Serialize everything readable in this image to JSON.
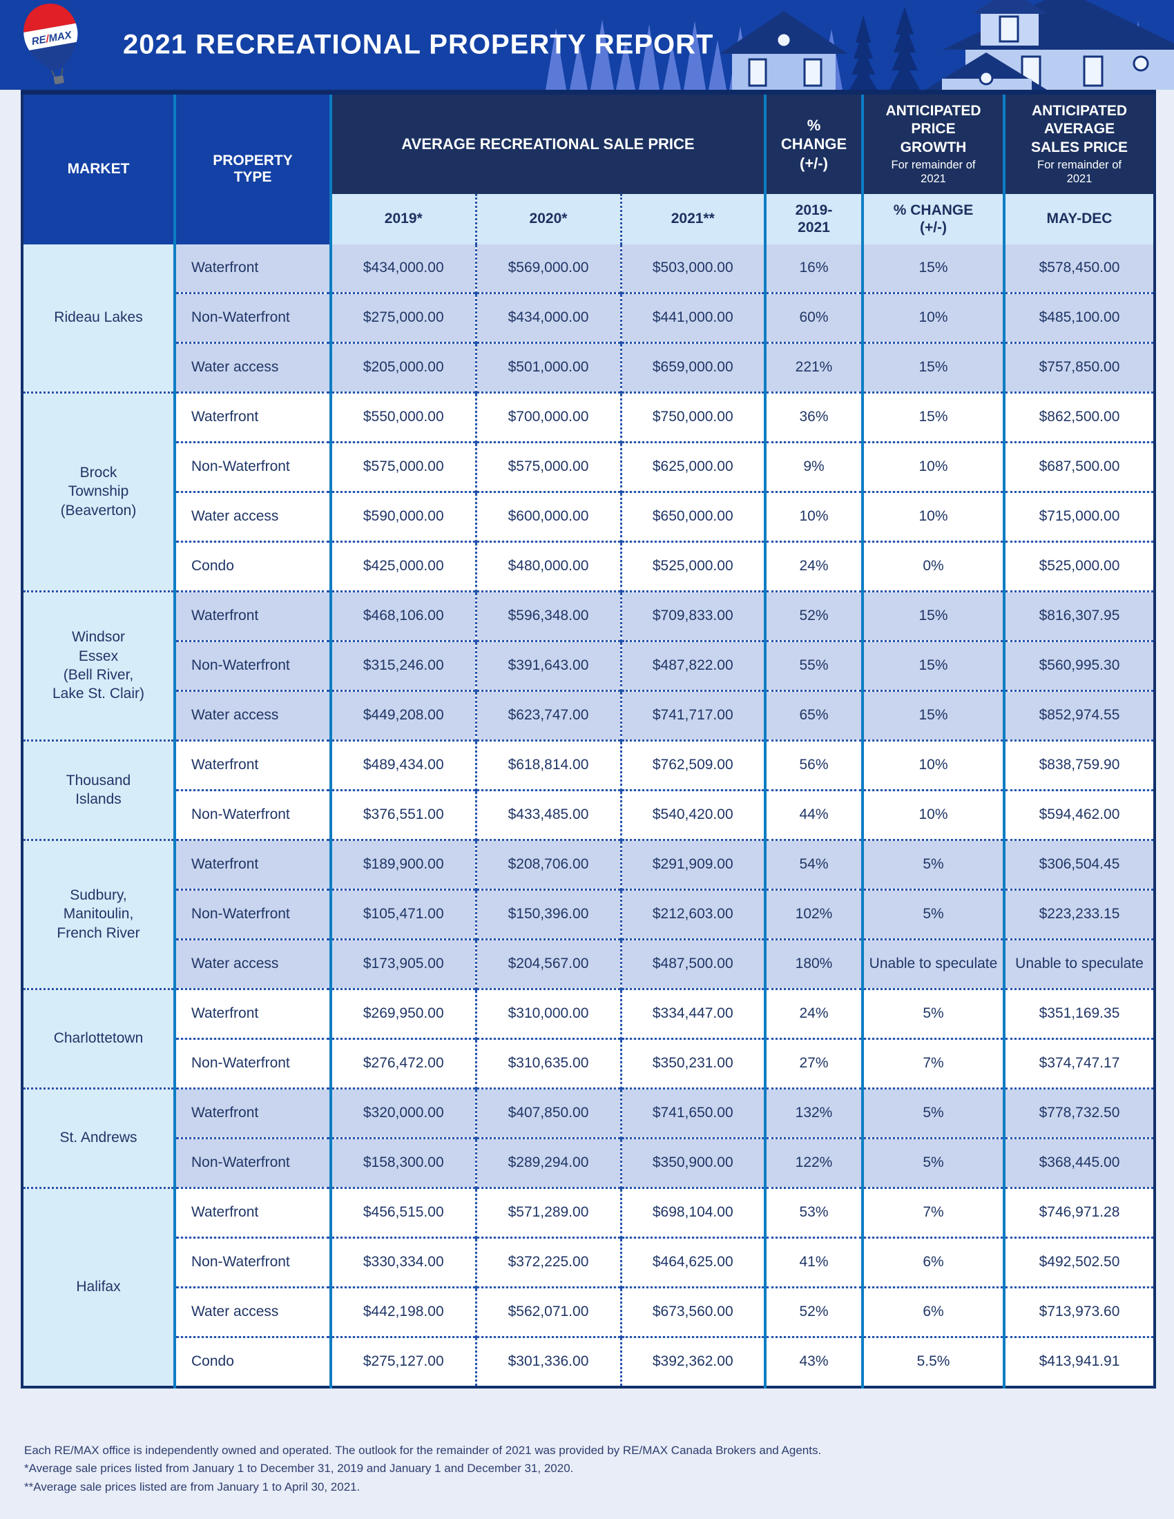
{
  "header": {
    "title": "2021 RECREATIONAL PROPERTY REPORT",
    "logo": {
      "re": "RE",
      "slash": "/",
      "max": "MAX"
    }
  },
  "table": {
    "headers": {
      "market": "MARKET",
      "property_type": "PROPERTY\nTYPE",
      "avg_sale_price": "AVERAGE RECREATIONAL SALE PRICE",
      "pct_change": "%\nCHANGE\n(+/-)",
      "growth_title": "ANTICIPATED\nPRICE\nGROWTH",
      "growth_sub": "For remainder of\n2021",
      "avg_title": "ANTICIPATED\nAVERAGE\nSALES PRICE",
      "avg_sub": "For remainder of\n2021",
      "sub_2019": "2019*",
      "sub_2020": "2020*",
      "sub_2021": "2021**",
      "sub_range": "2019-\n2021",
      "sub_pct": "% CHANGE\n(+/-)",
      "sub_maydec": "MAY-DEC"
    },
    "markets": [
      {
        "name": "Rideau Lakes",
        "rows": [
          {
            "type": "Waterfront",
            "p2019": "$434,000.00",
            "p2020": "$569,000.00",
            "p2021": "$503,000.00",
            "change": "16%",
            "growth": "15%",
            "anticipated": "$578,450.00"
          },
          {
            "type": "Non-Waterfront",
            "p2019": "$275,000.00",
            "p2020": "$434,000.00",
            "p2021": "$441,000.00",
            "change": "60%",
            "growth": "10%",
            "anticipated": "$485,100.00"
          },
          {
            "type": "Water access",
            "p2019": "$205,000.00",
            "p2020": "$501,000.00",
            "p2021": "$659,000.00",
            "change": "221%",
            "growth": "15%",
            "anticipated": "$757,850.00"
          }
        ]
      },
      {
        "name": "Brock\nTownship\n(Beaverton)",
        "rows": [
          {
            "type": "Waterfront",
            "p2019": "$550,000.00",
            "p2020": "$700,000.00",
            "p2021": "$750,000.00",
            "change": "36%",
            "growth": "15%",
            "anticipated": "$862,500.00"
          },
          {
            "type": "Non-Waterfront",
            "p2019": "$575,000.00",
            "p2020": "$575,000.00",
            "p2021": "$625,000.00",
            "change": "9%",
            "growth": "10%",
            "anticipated": "$687,500.00"
          },
          {
            "type": "Water access",
            "p2019": "$590,000.00",
            "p2020": "$600,000.00",
            "p2021": "$650,000.00",
            "change": "10%",
            "growth": "10%",
            "anticipated": "$715,000.00"
          },
          {
            "type": "Condo",
            "p2019": "$425,000.00",
            "p2020": "$480,000.00",
            "p2021": "$525,000.00",
            "change": "24%",
            "growth": "0%",
            "anticipated": "$525,000.00"
          }
        ]
      },
      {
        "name": "Windsor\nEssex\n(Bell River,\nLake St. Clair)",
        "rows": [
          {
            "type": "Waterfront",
            "p2019": "$468,106.00",
            "p2020": "$596,348.00",
            "p2021": "$709,833.00",
            "change": "52%",
            "growth": "15%",
            "anticipated": "$816,307.95"
          },
          {
            "type": "Non-Waterfront",
            "p2019": "$315,246.00",
            "p2020": "$391,643.00",
            "p2021": "$487,822.00",
            "change": "55%",
            "growth": "15%",
            "anticipated": "$560,995.30"
          },
          {
            "type": "Water access",
            "p2019": "$449,208.00",
            "p2020": "$623,747.00",
            "p2021": "$741,717.00",
            "change": "65%",
            "growth": "15%",
            "anticipated": "$852,974.55"
          }
        ]
      },
      {
        "name": "Thousand\nIslands",
        "rows": [
          {
            "type": "Waterfront",
            "p2019": "$489,434.00",
            "p2020": "$618,814.00",
            "p2021": "$762,509.00",
            "change": "56%",
            "growth": "10%",
            "anticipated": "$838,759.90"
          },
          {
            "type": "Non-Waterfront",
            "p2019": "$376,551.00",
            "p2020": "$433,485.00",
            "p2021": "$540,420.00",
            "change": "44%",
            "growth": "10%",
            "anticipated": "$594,462.00"
          }
        ]
      },
      {
        "name": "Sudbury,\nManitoulin,\nFrench River",
        "rows": [
          {
            "type": "Waterfront",
            "p2019": "$189,900.00",
            "p2020": "$208,706.00",
            "p2021": "$291,909.00",
            "change": "54%",
            "growth": "5%",
            "anticipated": "$306,504.45"
          },
          {
            "type": "Non-Waterfront",
            "p2019": "$105,471.00",
            "p2020": "$150,396.00",
            "p2021": "$212,603.00",
            "change": "102%",
            "growth": "5%",
            "anticipated": "$223,233.15"
          },
          {
            "type": "Water access",
            "p2019": "$173,905.00",
            "p2020": "$204,567.00",
            "p2021": "$487,500.00",
            "change": "180%",
            "growth": "Unable to speculate",
            "anticipated": "Unable to speculate"
          }
        ]
      },
      {
        "name": "Charlottetown",
        "rows": [
          {
            "type": "Waterfront",
            "p2019": "$269,950.00",
            "p2020": "$310,000.00",
            "p2021": "$334,447.00",
            "change": "24%",
            "growth": "5%",
            "anticipated": "$351,169.35"
          },
          {
            "type": "Non-Waterfront",
            "p2019": "$276,472.00",
            "p2020": "$310,635.00",
            "p2021": "$350,231.00",
            "change": "27%",
            "growth": "7%",
            "anticipated": "$374,747.17"
          }
        ]
      },
      {
        "name": "St. Andrews",
        "rows": [
          {
            "type": "Waterfront",
            "p2019": "$320,000.00",
            "p2020": "$407,850.00",
            "p2021": "$741,650.00",
            "change": "132%",
            "growth": "5%",
            "anticipated": "$778,732.50"
          },
          {
            "type": "Non-Waterfront",
            "p2019": "$158,300.00",
            "p2020": "$289,294.00",
            "p2021": "$350,900.00",
            "change": "122%",
            "growth": "5%",
            "anticipated": "$368,445.00"
          }
        ]
      },
      {
        "name": "Halifax",
        "rows": [
          {
            "type": "Waterfront",
            "p2019": "$456,515.00",
            "p2020": "$571,289.00",
            "p2021": "$698,104.00",
            "change": "53%",
            "growth": "7%",
            "anticipated": "$746,971.28"
          },
          {
            "type": "Non-Waterfront",
            "p2019": "$330,334.00",
            "p2020": "$372,225.00",
            "p2021": "$464,625.00",
            "change": "41%",
            "growth": "6%",
            "anticipated": "$492,502.50"
          },
          {
            "type": "Water access",
            "p2019": "$442,198.00",
            "p2020": "$562,071.00",
            "p2021": "$673,560.00",
            "change": "52%",
            "growth": "6%",
            "anticipated": "$713,973.60"
          },
          {
            "type": "Condo",
            "p2019": "$275,127.00",
            "p2020": "$301,336.00",
            "p2021": "$392,362.00",
            "change": "43%",
            "growth": "5.5%",
            "anticipated": "$413,941.91"
          }
        ]
      }
    ]
  },
  "footer": {
    "lines": [
      "Each RE/MAX office is independently owned and operated. The outlook for the remainder of 2021 was provided by RE/MAX Canada Brokers and Agents.",
      "*Average sale prices listed from January 1 to December 31, 2019 and January 1 and December 31, 2020.",
      "**Average sale prices listed are from January 1 to April 30, 2021."
    ]
  },
  "colors": {
    "royal_blue": "#1341a5",
    "dark_navy": "#1c3160",
    "cyan_border": "#0d7dc4",
    "light_blue_subheader": "#d3e8f8",
    "light_cyan_market": "#d7ecf9",
    "periwinkle_row": "#c9d5ee",
    "balloon_red": "#e01f26"
  }
}
